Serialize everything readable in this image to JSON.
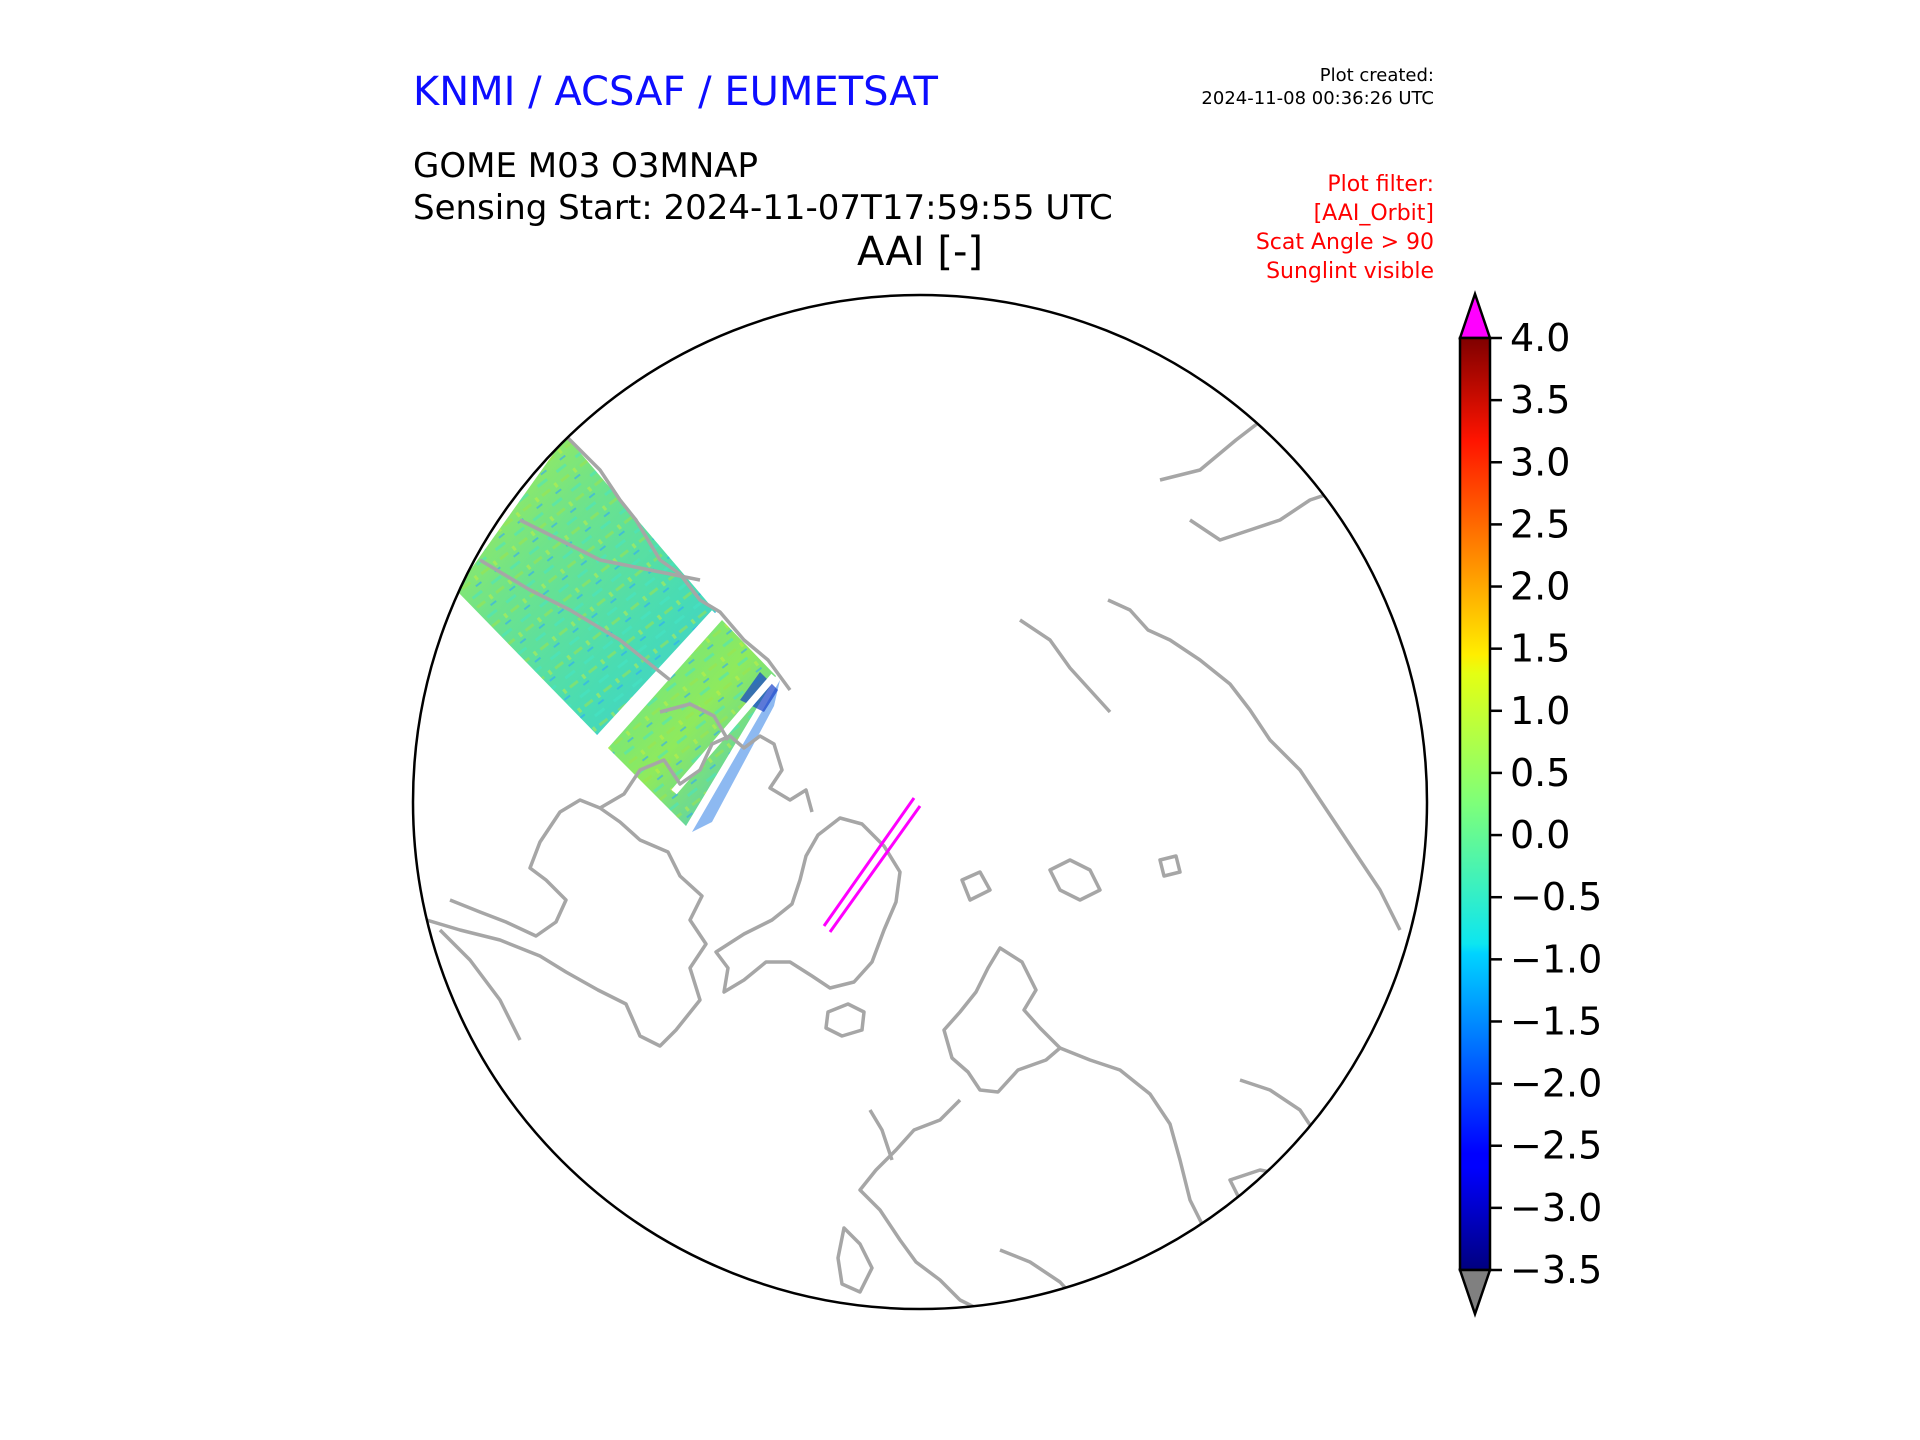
{
  "header": {
    "organization": "KNMI / ACSAF / EUMETSAT",
    "organization_color": "#0d0dff",
    "created_label": "Plot created:",
    "created_value": "2024-11-08 00:36:26 UTC",
    "product": "GOME M03 O3MNAP",
    "sensing_start": "Sensing Start: 2024-11-07T17:59:55 UTC",
    "quantity": "AAI [-]"
  },
  "filter": {
    "color": "#ff0000",
    "lines": [
      "Plot filter:",
      "[AAI_Orbit]",
      "Scat Angle > 90",
      "Sunglint visible"
    ]
  },
  "colorbar": {
    "min": -3.5,
    "max": 4.0,
    "ticks": [
      "4.0",
      "3.5",
      "3.0",
      "2.5",
      "2.0",
      "1.5",
      "1.0",
      "0.5",
      "0.0",
      "−0.5",
      "−1.0",
      "−1.5",
      "−2.0",
      "−2.5",
      "−3.0",
      "−3.5"
    ],
    "tick_values": [
      4.0,
      3.5,
      3.0,
      2.5,
      2.0,
      1.5,
      1.0,
      0.5,
      0.0,
      -0.5,
      -1.0,
      -1.5,
      -2.0,
      -2.5,
      -3.0,
      -3.5
    ],
    "over_color": "#ff00ff",
    "under_color": "#808080",
    "colormap": "jet"
  },
  "map": {
    "projection": "north-polar-stereographic",
    "coastline_color": "#a6a6a6",
    "boundary_color": "#000000",
    "track_color": "#ff00ff"
  }
}
